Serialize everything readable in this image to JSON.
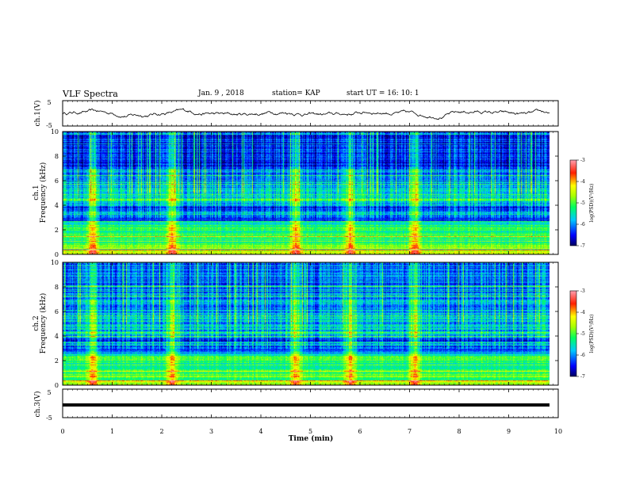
{
  "header": {
    "title": "VLF Spectra",
    "date": "Jan. 9 , 2018",
    "station": "station= KAP",
    "start": "start UT = 16: 10: 1"
  },
  "panels": {
    "ch1_wave_label": "ch.1(V)",
    "ch1_spec_label": "ch.1",
    "ch2_spec_label": "ch.2",
    "ch3_wave_label": "ch.3(V)",
    "freq_label": "Frequency (kHz)",
    "xlabel": "Time (min)"
  },
  "colorbar": {
    "label": "log(PSD)(V²/Hz)",
    "ticks": [
      "-3",
      "-4",
      "-5",
      "-6",
      "-7"
    ]
  },
  "chart_data": [
    {
      "type": "line",
      "ylabel": "ch.1(V)",
      "ylim": [
        -5,
        5
      ],
      "yticks": [
        "5",
        "-5"
      ],
      "xlim": [
        0,
        10
      ],
      "x_note": "Time (min)",
      "description_values": {
        "mean": 0,
        "amplitude": 1.5
      }
    },
    {
      "type": "heatmap",
      "channel": "ch.1",
      "ylabel": "Frequency (kHz)",
      "ylim": [
        0,
        10
      ],
      "yticks": [
        "0",
        "2",
        "4",
        "6",
        "8",
        "10"
      ],
      "xlim": [
        0,
        10
      ],
      "clim": [
        -7,
        -3
      ],
      "bright_times_min": [
        0.6,
        2.2,
        4.7,
        5.8,
        7.1
      ],
      "bright_band_khz": [
        0.5,
        2.5
      ]
    },
    {
      "type": "heatmap",
      "channel": "ch.2",
      "ylabel": "Frequency (kHz)",
      "ylim": [
        0,
        10
      ],
      "yticks": [
        "0",
        "2",
        "4",
        "6",
        "8",
        "10"
      ],
      "xlim": [
        0,
        10
      ],
      "clim": [
        -7,
        -3
      ],
      "bright_times_min": [
        0.6,
        2.2,
        4.7,
        5.8,
        7.1
      ],
      "bright_band_khz": [
        0.5,
        2.5
      ]
    },
    {
      "type": "line",
      "ylabel": "ch.3(V)",
      "ylim": [
        -5,
        5
      ],
      "yticks": [
        "5",
        "-5"
      ],
      "xlim": [
        0,
        10
      ],
      "constant_value": 0
    }
  ],
  "xaxis": {
    "ticks": [
      "0",
      "1",
      "2",
      "3",
      "4",
      "5",
      "6",
      "7",
      "8",
      "9",
      "10"
    ]
  }
}
